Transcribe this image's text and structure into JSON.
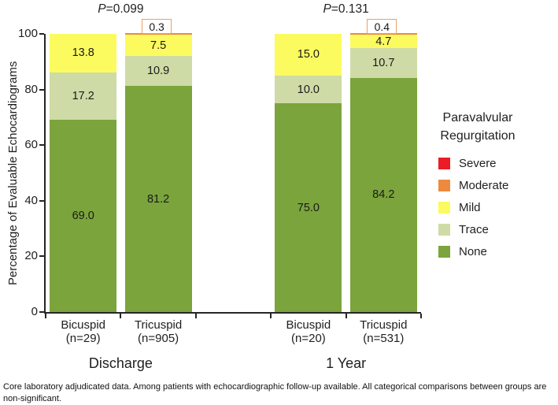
{
  "chart_data": {
    "type": "bar",
    "stacked": true,
    "title": "",
    "ylabel": "Percentage of Evaluable Echocardiograms",
    "ylim": [
      0,
      100
    ],
    "yticks": [
      0,
      20,
      40,
      60,
      80,
      100
    ],
    "grid": false,
    "legend_position": "right",
    "stack_order": [
      "none",
      "trace",
      "mild",
      "moderate"
    ],
    "colors": {
      "none": "#7BA43C",
      "trace": "#CEDBA6",
      "mild": "#FBFB5F",
      "moderate": "#EE8A3F",
      "severe": "#EC1C24"
    },
    "groups": [
      {
        "label": "Discharge",
        "p_label": "P=0.099",
        "bars": [
          {
            "name": "Bicuspid",
            "n_label": "(n=29)",
            "values": {
              "none": 69.0,
              "trace": 17.2,
              "mild": 13.8,
              "moderate": 0
            },
            "labels": {
              "none": "69.0",
              "trace": "17.2",
              "mild": "13.8"
            }
          },
          {
            "name": "Tricuspid",
            "n_label": "(n=905)",
            "values": {
              "none": 81.2,
              "trace": 10.9,
              "mild": 7.5,
              "moderate": 0.3
            },
            "labels": {
              "none": "81.2",
              "trace": "10.9",
              "mild": "7.5",
              "moderate": "0.3"
            }
          }
        ]
      },
      {
        "label": "1 Year",
        "p_label": "P=0.131",
        "bars": [
          {
            "name": "Bicuspid",
            "n_label": "(n=20)",
            "values": {
              "none": 75.0,
              "trace": 10.0,
              "mild": 15.0,
              "moderate": 0
            },
            "labels": {
              "none": "75.0",
              "trace": "10.0",
              "mild": "15.0"
            }
          },
          {
            "name": "Tricuspid",
            "n_label": "(n=531)",
            "values": {
              "none": 84.2,
              "trace": 10.7,
              "mild": 4.7,
              "moderate": 0.4
            },
            "labels": {
              "none": "84.2",
              "trace": "10.7",
              "mild": "4.7",
              "moderate": "0.4"
            }
          }
        ]
      }
    ]
  },
  "legend": {
    "title_line1": "Paravalvular",
    "title_line2": "Regurgitation",
    "items": [
      {
        "key": "severe",
        "label": "Severe",
        "color": "#EC1C24"
      },
      {
        "key": "moderate",
        "label": "Moderate",
        "color": "#EE8A3F"
      },
      {
        "key": "mild",
        "label": "Mild",
        "color": "#FBFB5F"
      },
      {
        "key": "trace",
        "label": "Trace",
        "color": "#CEDBA6"
      },
      {
        "key": "none",
        "label": "None",
        "color": "#7BA43C"
      }
    ]
  },
  "footnote": {
    "line1": "Core laboratory adjudicated data. Among patients with echocardiographic follow-up available. All categorical comparisons between groups are",
    "line2": "non-significant."
  }
}
